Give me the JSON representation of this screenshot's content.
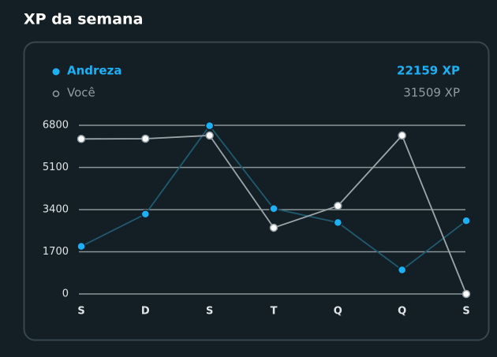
{
  "chart_data": {
    "type": "line",
    "title": "XP da semana",
    "categories": [
      "S",
      "D",
      "S",
      "T",
      "Q",
      "Q",
      "S"
    ],
    "series": [
      {
        "name": "Andreza",
        "total": "22159 XP",
        "color": "#1cb0f6",
        "line_color": "#1f5a70",
        "marker": "filled",
        "values": [
          1920,
          3220,
          6780,
          3440,
          2880,
          970,
          2950
        ]
      },
      {
        "name": "Você",
        "total": "31509 XP",
        "color": "#8f9ca2",
        "line_color": "#9ba6ab",
        "marker": "hollow",
        "values": [
          6250,
          6260,
          6390,
          2670,
          3550,
          6390,
          0
        ]
      }
    ],
    "ylim": [
      0,
      6800
    ],
    "yticks": [
      0,
      1700,
      3400,
      5100,
      6800
    ],
    "grid": true
  }
}
